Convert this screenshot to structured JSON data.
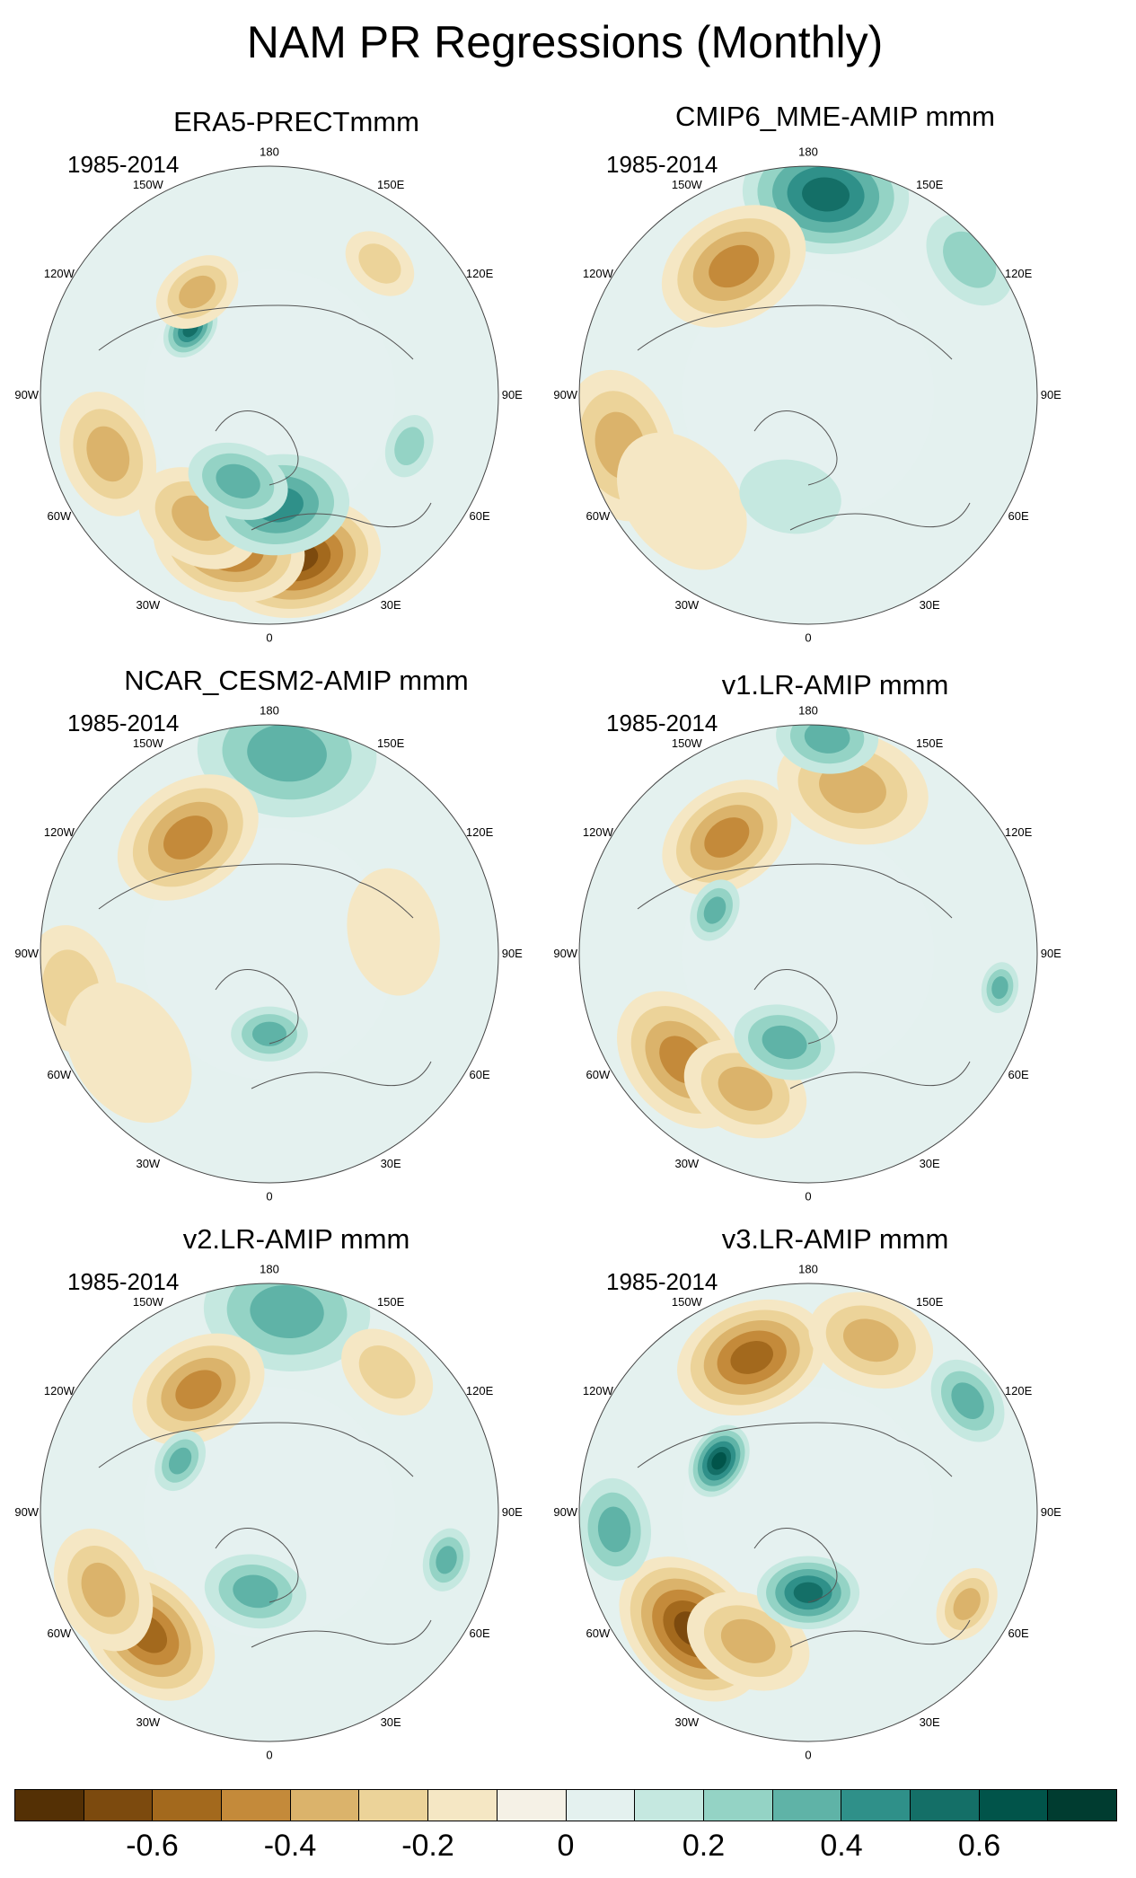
{
  "figure": {
    "title": "NAM PR Regressions (Monthly)",
    "period": "1985-2014"
  },
  "chart_data": {
    "type": "heatmap",
    "projection": "north-polar-stereographic",
    "longitude_labels": [
      "180",
      "150E",
      "120E",
      "90E",
      "60E",
      "30E",
      "0",
      "30W",
      "60W",
      "90W",
      "120W",
      "150W"
    ],
    "panels": [
      {
        "title": "ERA5-PRECTmmm",
        "period": "1985-2014",
        "features": [
          {
            "lon": 10,
            "r": 0.72,
            "v": -0.55,
            "sz": 0.13
          },
          {
            "lon": -15,
            "r": 0.68,
            "v": -0.45,
            "sz": 0.12
          },
          {
            "lon": -30,
            "r": 0.62,
            "v": -0.3,
            "sz": 0.1
          },
          {
            "lon": 5,
            "r": 0.48,
            "v": 0.4,
            "sz": 0.11
          },
          {
            "lon": -20,
            "r": 0.4,
            "v": 0.3,
            "sz": 0.08
          },
          {
            "lon": -70,
            "r": 0.75,
            "v": -0.3,
            "sz": 0.1
          },
          {
            "lon": -130,
            "r": 0.45,
            "v": 0.45,
            "sz": 0.05
          },
          {
            "lon": -145,
            "r": 0.55,
            "v": -0.3,
            "sz": 0.07
          },
          {
            "lon": 140,
            "r": 0.75,
            "v": -0.2,
            "sz": 0.06
          },
          {
            "lon": 70,
            "r": 0.65,
            "v": 0.2,
            "sz": 0.05
          }
        ]
      },
      {
        "title": "CMIP6_MME-AMIP  mmm",
        "period": "1985-2014",
        "features": [
          {
            "lon": 175,
            "r": 0.88,
            "v": 0.45,
            "sz": 0.13
          },
          {
            "lon": -150,
            "r": 0.65,
            "v": -0.4,
            "sz": 0.12
          },
          {
            "lon": -75,
            "r": 0.85,
            "v": -0.25,
            "sz": 0.12
          },
          {
            "lon": -50,
            "r": 0.72,
            "v": -0.15,
            "sz": 0.12
          },
          {
            "lon": 130,
            "r": 0.92,
            "v": 0.2,
            "sz": 0.08
          },
          {
            "lon": -10,
            "r": 0.45,
            "v": 0.15,
            "sz": 0.08
          }
        ]
      },
      {
        "title": "NCAR_CESM2-AMIP  mmm",
        "period": "1985-2014",
        "features": [
          {
            "lon": 175,
            "r": 0.88,
            "v": 0.35,
            "sz": 0.14
          },
          {
            "lon": -145,
            "r": 0.62,
            "v": -0.4,
            "sz": 0.12
          },
          {
            "lon": -80,
            "r": 0.88,
            "v": -0.2,
            "sz": 0.1
          },
          {
            "lon": -55,
            "r": 0.75,
            "v": -0.15,
            "sz": 0.12
          },
          {
            "lon": 0,
            "r": 0.35,
            "v": 0.3,
            "sz": 0.06
          },
          {
            "lon": 100,
            "r": 0.55,
            "v": -0.1,
            "sz": 0.1
          }
        ]
      },
      {
        "title": "v1.LR-AMIP  mmm",
        "period": "1985-2014",
        "features": [
          {
            "lon": -145,
            "r": 0.62,
            "v": -0.4,
            "sz": 0.11
          },
          {
            "lon": 165,
            "r": 0.75,
            "v": -0.25,
            "sz": 0.12
          },
          {
            "lon": -50,
            "r": 0.72,
            "v": -0.4,
            "sz": 0.12
          },
          {
            "lon": -25,
            "r": 0.65,
            "v": -0.3,
            "sz": 0.1
          },
          {
            "lon": -15,
            "r": 0.4,
            "v": 0.3,
            "sz": 0.08
          },
          {
            "lon": 175,
            "r": 0.95,
            "v": 0.25,
            "sz": 0.08
          },
          {
            "lon": 80,
            "r": 0.85,
            "v": 0.3,
            "sz": 0.04
          },
          {
            "lon": -115,
            "r": 0.45,
            "v": 0.25,
            "sz": 0.05
          }
        ]
      },
      {
        "title": "v2.LR-AMIP  mmm",
        "period": "1985-2014",
        "features": [
          {
            "lon": 175,
            "r": 0.88,
            "v": 0.35,
            "sz": 0.13
          },
          {
            "lon": -150,
            "r": 0.62,
            "v": -0.4,
            "sz": 0.11
          },
          {
            "lon": -45,
            "r": 0.75,
            "v": -0.45,
            "sz": 0.12
          },
          {
            "lon": -65,
            "r": 0.8,
            "v": -0.25,
            "sz": 0.1
          },
          {
            "lon": 140,
            "r": 0.8,
            "v": -0.2,
            "sz": 0.08
          },
          {
            "lon": -10,
            "r": 0.35,
            "v": 0.25,
            "sz": 0.08
          },
          {
            "lon": 75,
            "r": 0.8,
            "v": 0.25,
            "sz": 0.05
          },
          {
            "lon": -120,
            "r": 0.45,
            "v": 0.3,
            "sz": 0.05
          }
        ]
      },
      {
        "title": "v3.LR-AMIP  mmm",
        "period": "1985-2014",
        "features": [
          {
            "lon": -160,
            "r": 0.72,
            "v": -0.5,
            "sz": 0.12
          },
          {
            "lon": 160,
            "r": 0.8,
            "v": -0.3,
            "sz": 0.1
          },
          {
            "lon": -45,
            "r": 0.72,
            "v": -0.55,
            "sz": 0.13
          },
          {
            "lon": -25,
            "r": 0.62,
            "v": -0.35,
            "sz": 0.1
          },
          {
            "lon": -120,
            "r": 0.45,
            "v": 0.55,
            "sz": 0.06
          },
          {
            "lon": 0,
            "r": 0.35,
            "v": 0.45,
            "sz": 0.08
          },
          {
            "lon": -85,
            "r": 0.85,
            "v": 0.3,
            "sz": 0.08
          },
          {
            "lon": 125,
            "r": 0.85,
            "v": 0.25,
            "sz": 0.07
          },
          {
            "lon": 60,
            "r": 0.8,
            "v": -0.25,
            "sz": 0.06
          }
        ]
      }
    ],
    "colorbar": {
      "levels": [
        -0.7,
        -0.6,
        -0.5,
        -0.4,
        -0.3,
        -0.2,
        -0.1,
        0,
        0.1,
        0.2,
        0.3,
        0.4,
        0.5,
        0.6,
        0.7
      ],
      "colors": [
        "#543005",
        "#7c4a0e",
        "#a3691d",
        "#c48a3a",
        "#dbb36b",
        "#ecd399",
        "#f5e7c4",
        "#f5f1e6",
        "#e4f1ef",
        "#c5e8e0",
        "#94d3c5",
        "#5fb3a7",
        "#2f9089",
        "#146f67",
        "#01544a",
        "#003c30"
      ],
      "tick_labels": [
        "-0.6",
        "-0.4",
        "-0.2",
        "0",
        "0.2",
        "0.4",
        "0.6"
      ],
      "tick_values": [
        -0.6,
        -0.4,
        -0.2,
        0,
        0.2,
        0.4,
        0.6
      ]
    }
  }
}
